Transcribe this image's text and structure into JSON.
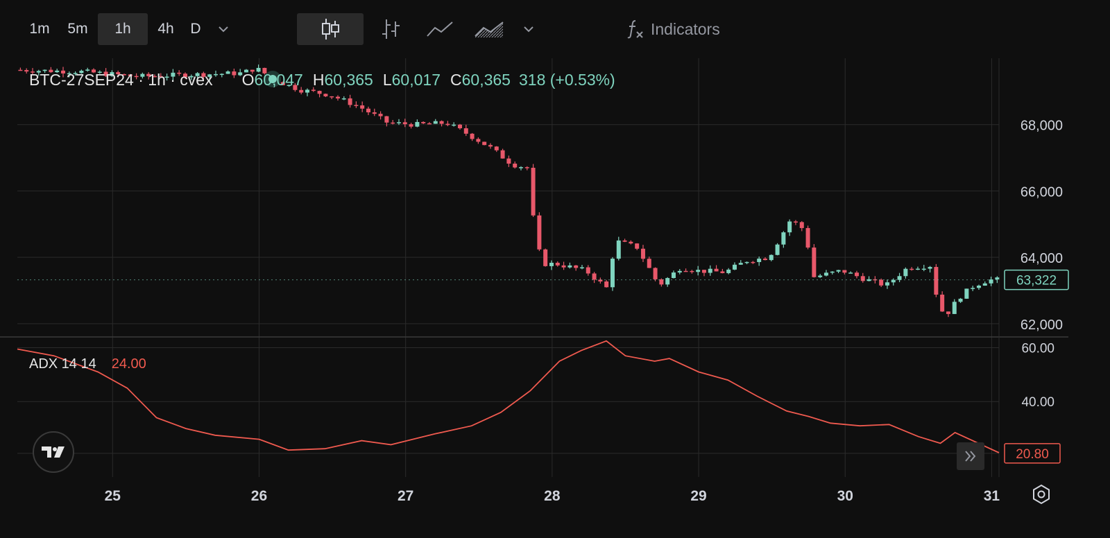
{
  "toolbar": {
    "timeframes": [
      "1m",
      "5m",
      "1h",
      "4h",
      "D"
    ],
    "active_timeframe": "1h",
    "chart_types": [
      "candles-icon",
      "bars-icon",
      "line-icon",
      "area-icon"
    ],
    "active_chart_type": "candles-icon",
    "indicators_label": "Indicators"
  },
  "legend": {
    "symbol": "BTC-27SEP24 · 1h · cvex",
    "open_label": "O",
    "open": "60,047",
    "high_label": "H",
    "high": "60,365",
    "low_label": "L",
    "low": "60,017",
    "close_label": "C",
    "close": "60,365",
    "change": "318 (+0.53%)"
  },
  "adx_legend": {
    "name": "ADX 14 14",
    "value": "24.00"
  },
  "colors": {
    "up": "#7fd4bf",
    "down": "#e8586a",
    "adx": "#f05a4f",
    "bg": "#0f0f0f",
    "grid": "#2b2b2b"
  },
  "chart_data": {
    "type": "candlestick",
    "x_labels": [
      "25",
      "26",
      "27",
      "28",
      "29",
      "30",
      "31"
    ],
    "x_range_days": [
      24.35,
      31.05
    ],
    "price_axis": {
      "ticks": [
        62000,
        64000,
        66000,
        68000
      ],
      "tick_labels": [
        "62,000",
        "64,000",
        "66,000",
        "68,000"
      ],
      "range": [
        61600,
        70000
      ]
    },
    "last_price": 63322,
    "last_price_label": "63,322",
    "price_path": [
      [
        24.35,
        69650
      ],
      [
        24.8,
        69600
      ],
      [
        25.2,
        69450
      ],
      [
        25.5,
        69500
      ],
      [
        25.9,
        69550
      ],
      [
        26.0,
        69700
      ],
      [
        26.15,
        69300
      ],
      [
        26.3,
        69050
      ],
      [
        26.5,
        68900
      ],
      [
        26.7,
        68550
      ],
      [
        26.9,
        68050
      ],
      [
        27.1,
        68000
      ],
      [
        27.3,
        68050
      ],
      [
        27.45,
        67700
      ],
      [
        27.6,
        67300
      ],
      [
        27.75,
        66800
      ],
      [
        27.85,
        66700
      ],
      [
        27.9,
        64900
      ],
      [
        27.95,
        63800
      ],
      [
        28.05,
        63800
      ],
      [
        28.25,
        63600
      ],
      [
        28.4,
        63050
      ],
      [
        28.45,
        64500
      ],
      [
        28.6,
        64300
      ],
      [
        28.75,
        63150
      ],
      [
        28.9,
        63700
      ],
      [
        29.0,
        63600
      ],
      [
        29.2,
        63550
      ],
      [
        29.35,
        63900
      ],
      [
        29.5,
        64000
      ],
      [
        29.65,
        65150
      ],
      [
        29.75,
        64800
      ],
      [
        29.8,
        63400
      ],
      [
        30.0,
        63600
      ],
      [
        30.15,
        63350
      ],
      [
        30.3,
        63150
      ],
      [
        30.45,
        63700
      ],
      [
        30.6,
        63750
      ],
      [
        30.65,
        62750
      ],
      [
        30.7,
        62200
      ],
      [
        30.8,
        62800
      ],
      [
        30.9,
        63150
      ],
      [
        31.0,
        63322
      ]
    ],
    "adx": {
      "ticks": [
        40,
        60
      ],
      "tick_labels": [
        "40.00",
        "60.00"
      ],
      "range": [
        12,
        64
      ],
      "last_value": 20.8,
      "last_label": "20.80",
      "points": [
        [
          24.35,
          59.5
        ],
        [
          24.6,
          57
        ],
        [
          24.9,
          51
        ],
        [
          25.1,
          45
        ],
        [
          25.3,
          34
        ],
        [
          25.5,
          30
        ],
        [
          25.7,
          27.5
        ],
        [
          26.0,
          26
        ],
        [
          26.2,
          22
        ],
        [
          26.45,
          22.5
        ],
        [
          26.7,
          25.5
        ],
        [
          26.9,
          24
        ],
        [
          27.2,
          28
        ],
        [
          27.45,
          31
        ],
        [
          27.65,
          36
        ],
        [
          27.85,
          44
        ],
        [
          28.05,
          55
        ],
        [
          28.2,
          59
        ],
        [
          28.37,
          62.5
        ],
        [
          28.5,
          57
        ],
        [
          28.7,
          55
        ],
        [
          28.8,
          56
        ],
        [
          29.0,
          51
        ],
        [
          29.2,
          48
        ],
        [
          29.4,
          42
        ],
        [
          29.6,
          36.5
        ],
        [
          29.75,
          34.5
        ],
        [
          29.9,
          32
        ],
        [
          30.1,
          31
        ],
        [
          30.3,
          31.5
        ],
        [
          30.5,
          27
        ],
        [
          30.65,
          24.5
        ],
        [
          30.75,
          28.5
        ],
        [
          31.05,
          21
        ]
      ]
    }
  }
}
